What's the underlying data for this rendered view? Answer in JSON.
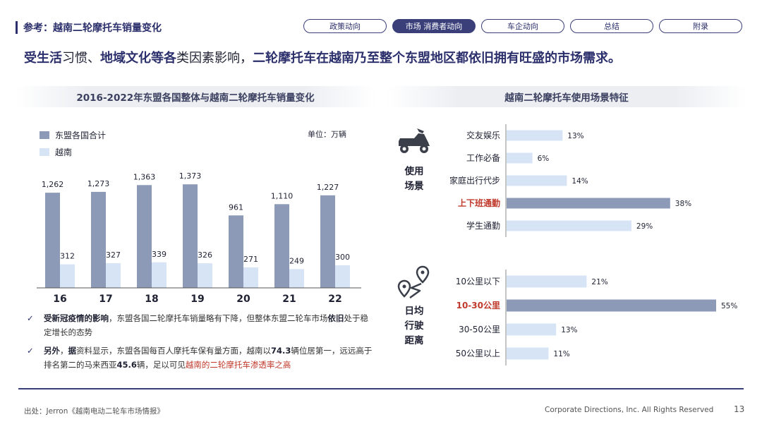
{
  "header": {
    "title": "参考：越南二轮摩托车销量变化"
  },
  "nav": {
    "tabs": [
      {
        "label": "政策动向",
        "active": false
      },
      {
        "label": "市场 消费者动向",
        "active": true
      },
      {
        "label": "车企动向",
        "active": false
      },
      {
        "label": "总结",
        "active": false
      },
      {
        "label": "附录",
        "active": false
      }
    ]
  },
  "headline": {
    "part1": "受生活",
    "part2": "习惯、",
    "part3": "地域文化等各",
    "part4": "类因素影响，",
    "part5": "二轮摩托车在越南乃至整个东盟地区都依旧拥有旺盛的市场需求。"
  },
  "left": {
    "section_title": "2016-2022年东盟各国整体与越南二轮摩托车销量变化",
    "legend_a": "东盟各国合计",
    "legend_b": "越南",
    "unit": "单位：万辆",
    "colors": {
      "asean": "#8c9ab8",
      "vietnam": "#d6e4f6"
    }
  },
  "chart_data": [
    {
      "type": "bar",
      "title": "2016-2022年东盟各国整体与越南二轮摩托车销量变化",
      "categories": [
        "16",
        "17",
        "18",
        "19",
        "20",
        "21",
        "22"
      ],
      "series": [
        {
          "name": "东盟各国合计",
          "values": [
            1262,
            1273,
            1363,
            1373,
            961,
            1110,
            1227
          ]
        },
        {
          "name": "越南",
          "values": [
            312,
            327,
            339,
            326,
            271,
            249,
            300
          ]
        }
      ],
      "value_labels": [
        [
          "1,262",
          "1,273",
          "1,363",
          "1,373",
          "961",
          "1,110",
          "1,227"
        ],
        [
          "312",
          "327",
          "339",
          "326",
          "271",
          "249",
          "300"
        ]
      ],
      "ylabel": "单位：万辆",
      "ylim": [
        0,
        1450
      ]
    },
    {
      "type": "bar",
      "orientation": "horizontal",
      "title": "越南二轮摩托车使用场景特征",
      "group": "使用场景",
      "categories": [
        "交友娱乐",
        "工作必备",
        "家庭出行代步",
        "上下班通勤",
        "学生通勤"
      ],
      "values": [
        13,
        6,
        14,
        38,
        29
      ],
      "labels": [
        "13%",
        "6%",
        "14%",
        "38%",
        "29%"
      ],
      "highlight": "上下班通勤"
    },
    {
      "type": "bar",
      "orientation": "horizontal",
      "group": "日均行驶距离",
      "categories": [
        "10公里以下",
        "10-30公里",
        "30-50公里",
        "50公里以上"
      ],
      "values": [
        21,
        55,
        13,
        11
      ],
      "labels": [
        "21%",
        "55%",
        "13%",
        "11%"
      ],
      "highlight": "10-30公里"
    }
  ],
  "right": {
    "section_title": "越南二轮摩托车使用场景特征",
    "usage_label_1": "使用",
    "usage_label_2": "场景",
    "distance_label_1": "日均",
    "distance_label_2": "行驶",
    "distance_label_3": "距离",
    "colors": {
      "normal": "#d6e4f6",
      "highlight": "#8c9ab8",
      "highlight_text": "#c0392b"
    }
  },
  "notes": [
    {
      "check": "✓",
      "a": "受新冠疫情的影响",
      "b": "，东盟各国二轮摩托车销量略有下降，但整体东盟二轮车市场",
      "c": "依旧",
      "d": "处于稳定增长的态势"
    },
    {
      "check": "✓",
      "a": "另外",
      "b": "，",
      "c": "据",
      "d": "资料显示，东盟各国每百人摩托车保有量方面，越南以",
      "e": "74.3",
      "f": "辆位居第一，远远高于排名第二的马来西亚",
      "g": "45.6",
      "h": "辆，足以可见",
      "i": "越南的二轮摩托车渗透率之高"
    }
  ],
  "footer": {
    "source": "出处：Jerron《越南电动二轮车市场情报》",
    "copyright": "Corporate Directions, Inc. All Rights Reserved",
    "page": "13"
  }
}
